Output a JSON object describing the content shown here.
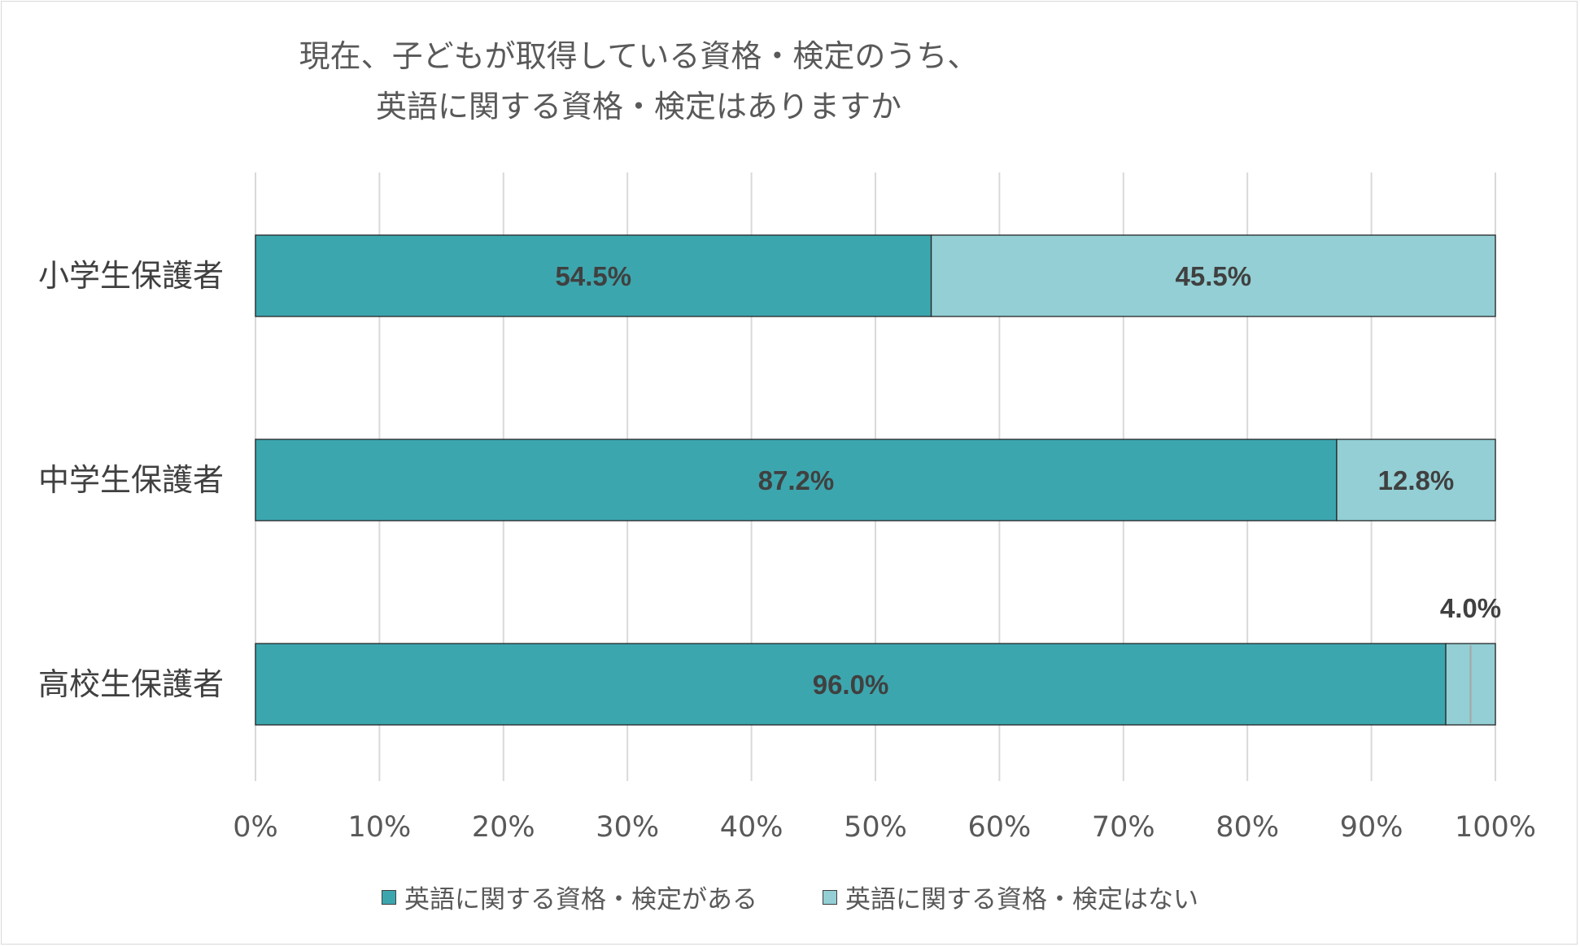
{
  "chart_data": {
    "type": "bar",
    "orientation": "horizontal",
    "stacked": "percent",
    "title_lines": [
      "現在、子どもが取得している資格・検定のうち、",
      "英語に関する資格・検定はありますか"
    ],
    "categories": [
      "小学生保護者",
      "中学生保護者",
      "高校生保護者"
    ],
    "series": [
      {
        "name": "英語に関する資格・検定がある",
        "values": [
          54.5,
          87.2,
          96.0
        ],
        "labels": [
          "54.5%",
          "87.2%",
          "96.0%"
        ],
        "color": "#3CA6AE"
      },
      {
        "name": "英語に関する資格・検定はない",
        "values": [
          45.5,
          12.8,
          4.0
        ],
        "labels": [
          "45.5%",
          "12.8%",
          "4.0%"
        ],
        "color": "#93CFD5"
      }
    ],
    "xlim": [
      0,
      100
    ],
    "xticks": [
      "0%",
      "10%",
      "20%",
      "30%",
      "40%",
      "50%",
      "60%",
      "70%",
      "80%",
      "90%",
      "100%"
    ],
    "grid": true,
    "legend_position": "bottom"
  }
}
